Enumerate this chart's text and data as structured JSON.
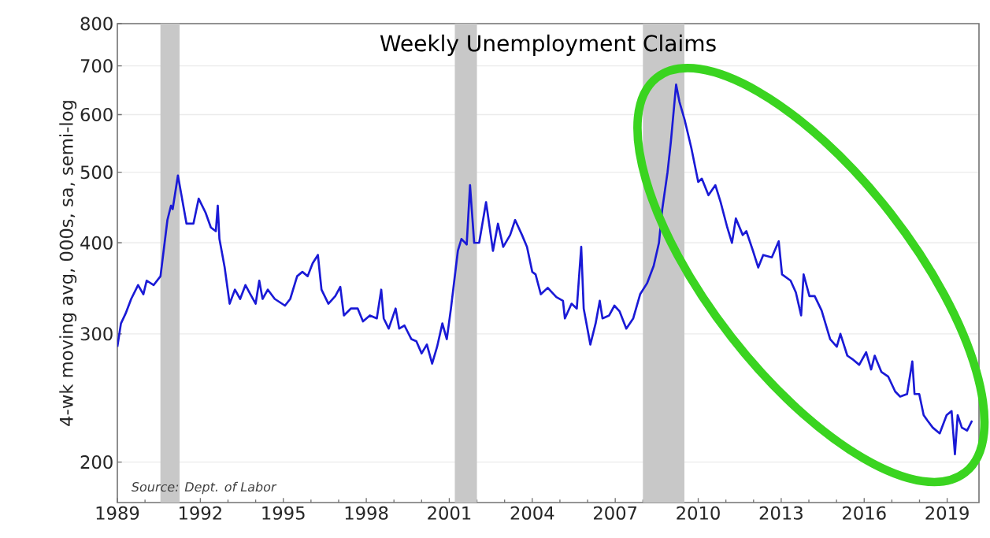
{
  "chart_data": {
    "type": "line",
    "title": "Weekly Unemployment Claims",
    "ylabel": "4-wk moving avg, 000s, sa, semi-log",
    "annotations": [
      "Source: Dept. of Labor"
    ],
    "log": true,
    "grid": "y",
    "xlim": [
      1989,
      2020.15
    ],
    "ylim": [
      176,
      800
    ],
    "xticks": [
      1989,
      1992,
      1995,
      1998,
      2001,
      2004,
      2007,
      2010,
      2013,
      2016,
      2019
    ],
    "yticks": [
      200,
      300,
      400,
      500,
      600,
      700,
      800
    ],
    "bands": [
      {
        "axis": "x",
        "from": 1990.55,
        "to": 1991.25,
        "color": "#c8c8c8"
      },
      {
        "axis": "x",
        "from": 2001.2,
        "to": 2002.0,
        "color": "#c8c8c8"
      },
      {
        "axis": "x",
        "from": 2008.0,
        "to": 2009.5,
        "color": "#c8c8c8"
      }
    ],
    "series": [
      {
        "color": "#1a1ad6",
        "x": [
          1989,
          1989.13,
          1989.3,
          1989.5,
          1989.75,
          1989.94,
          1990.06,
          1990.31,
          1990.56,
          1990.81,
          1990.94,
          1991,
          1991.19,
          1991.5,
          1991.75,
          1991.94,
          1992.19,
          1992.38,
          1992.56,
          1992.63,
          1992.69,
          1992.88,
          1993.06,
          1993.25,
          1993.44,
          1993.63,
          1993.81,
          1994,
          1994.13,
          1994.25,
          1994.44,
          1994.69,
          1995.06,
          1995.25,
          1995.5,
          1995.69,
          1995.88,
          1996.06,
          1996.25,
          1996.38,
          1996.63,
          1996.88,
          1997.06,
          1997.19,
          1997.44,
          1997.69,
          1997.88,
          1998.13,
          1998.38,
          1998.54,
          1998.63,
          1998.81,
          1999.06,
          1999.19,
          1999.38,
          1999.63,
          1999.81,
          2000,
          2000.19,
          2000.38,
          2000.56,
          2000.75,
          2000.91,
          2001.06,
          2001.31,
          2001.44,
          2001.63,
          2001.75,
          2001.9,
          2002.08,
          2002.33,
          2002.58,
          2002.76,
          2002.95,
          2003.2,
          2003.38,
          2003.63,
          2003.81,
          2004,
          2004.12,
          2004.31,
          2004.56,
          2004.87,
          2005.11,
          2005.18,
          2005.42,
          2005.61,
          2005.77,
          2005.86,
          2006.1,
          2006.29,
          2006.44,
          2006.54,
          2006.78,
          2006.97,
          2007.16,
          2007.4,
          2007.65,
          2007.9,
          2008.15,
          2008.39,
          2008.58,
          2008.7,
          2008.89,
          2009.01,
          2009.2,
          2009.32,
          2009.51,
          2009.75,
          2010,
          2010.13,
          2010.37,
          2010.62,
          2010.81,
          2011.05,
          2011.22,
          2011.36,
          2011.61,
          2011.74,
          2011.98,
          2012.17,
          2012.35,
          2012.66,
          2012.91,
          2013.03,
          2013.34,
          2013.53,
          2013.72,
          2013.81,
          2014.02,
          2014.21,
          2014.46,
          2014.77,
          2015.01,
          2015.14,
          2015.39,
          2015.57,
          2015.82,
          2016.07,
          2016.25,
          2016.38,
          2016.62,
          2016.87,
          2017.12,
          2017.3,
          2017.55,
          2017.74,
          2017.82,
          2017.99,
          2018.15,
          2018.29,
          2018.48,
          2018.73,
          2018.98,
          2019.16,
          2019.28,
          2019.38,
          2019.53,
          2019.72,
          2019.9
        ],
        "values": [
          288,
          310,
          320,
          335,
          350,
          340,
          355,
          350,
          360,
          430,
          450,
          445,
          495,
          425,
          425,
          460,
          440,
          420,
          415,
          450,
          405,
          370,
          330,
          345,
          335,
          350,
          340,
          330,
          355,
          335,
          345,
          335,
          328,
          335,
          360,
          365,
          360,
          375,
          385,
          345,
          330,
          338,
          348,
          318,
          325,
          325,
          312,
          318,
          315,
          345,
          315,
          305,
          325,
          305,
          308,
          295,
          293,
          282,
          290,
          273,
          288,
          310,
          295,
          325,
          390,
          405,
          398,
          480,
          400,
          400,
          455,
          390,
          425,
          395,
          410,
          430,
          410,
          395,
          365,
          362,
          340,
          347,
          337,
          333,
          315,
          330,
          325,
          395,
          325,
          290,
          310,
          333,
          315,
          318,
          328,
          322,
          305,
          315,
          340,
          352,
          372,
          400,
          445,
          500,
          550,
          660,
          625,
          590,
          540,
          485,
          490,
          465,
          480,
          455,
          420,
          400,
          432,
          410,
          415,
          390,
          370,
          385,
          382,
          402,
          362,
          355,
          342,
          318,
          362,
          338,
          338,
          323,
          295,
          288,
          300,
          280,
          277,
          272,
          283,
          268,
          280,
          266,
          262,
          250,
          246,
          248,
          275,
          248,
          248,
          232,
          228,
          223,
          219,
          232,
          235,
          205,
          232,
          223,
          221,
          228
        ]
      }
    ]
  }
}
